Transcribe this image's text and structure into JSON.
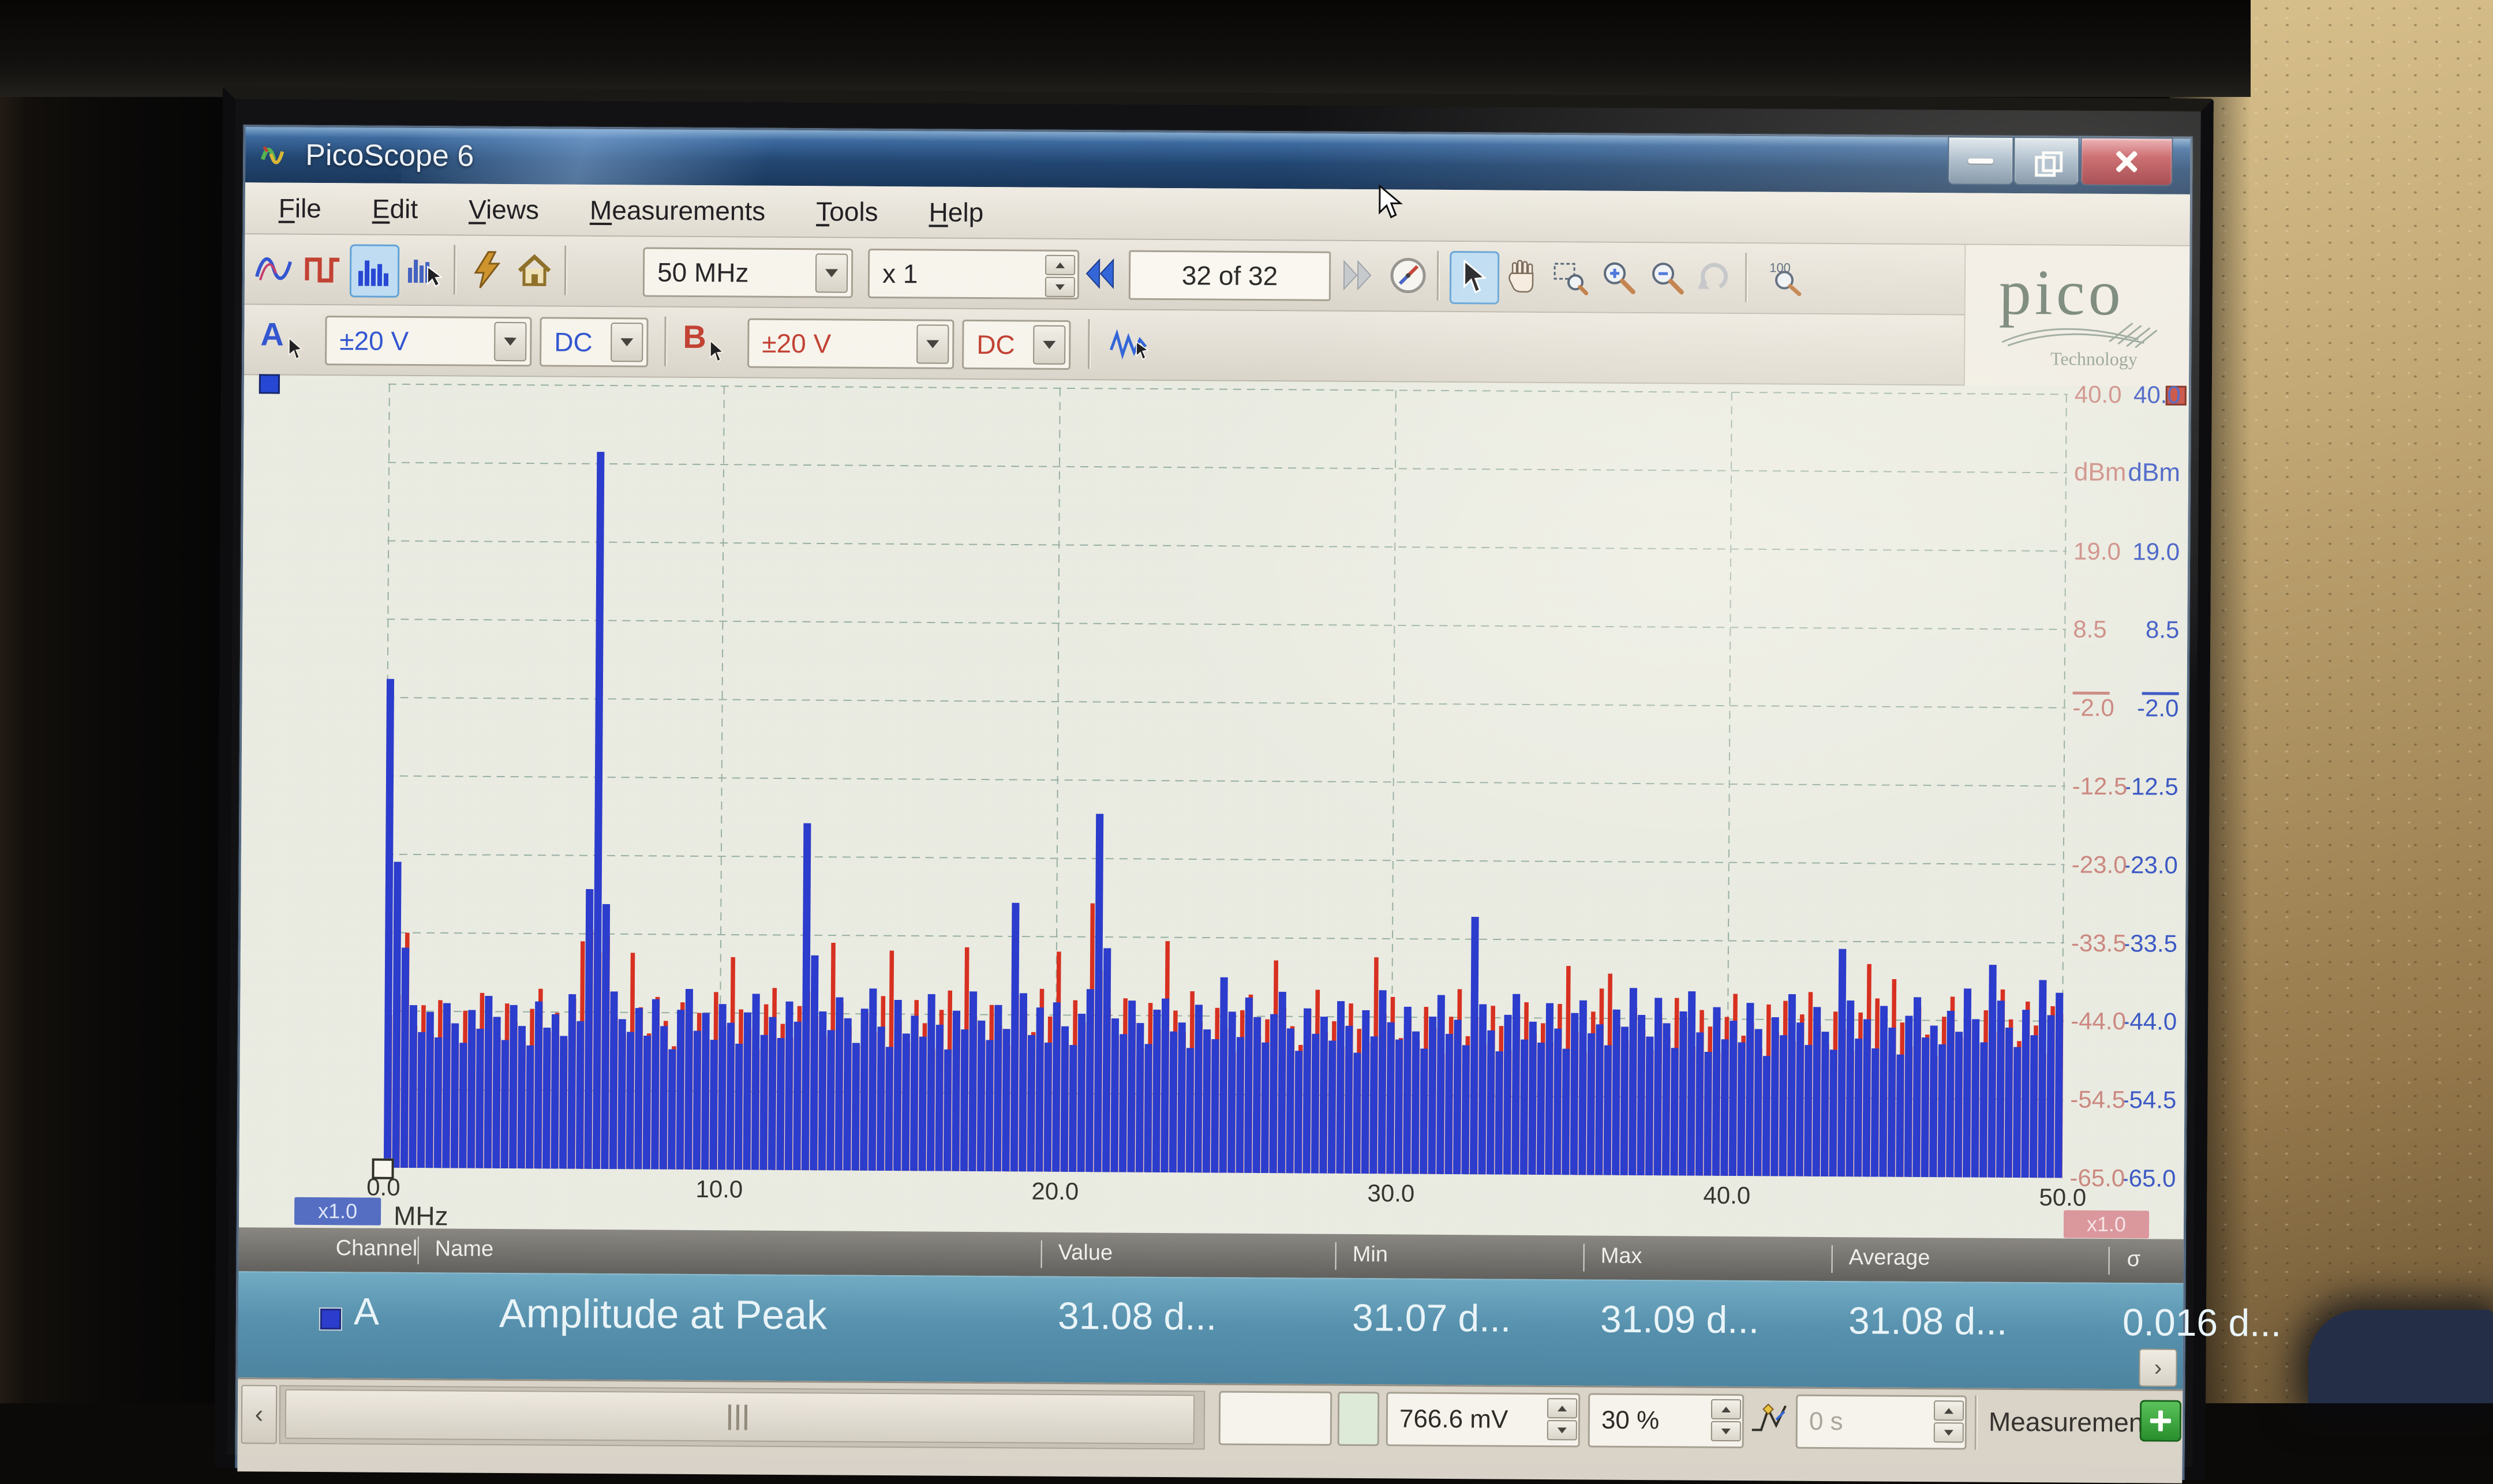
{
  "window": {
    "title": "PicoScope 6"
  },
  "menu": {
    "items": [
      "File",
      "Edit",
      "Views",
      "Measurements",
      "Tools",
      "Help"
    ]
  },
  "toolbar": {
    "timebase": "50 MHz",
    "zoom_factor": "x 1",
    "buffer_position": "32 of 32",
    "icons": [
      "scope-view-icon",
      "square-wave-icon",
      "spectrum-view-icon",
      "persistence-view-icon",
      "signal-generator-icon",
      "home-icon",
      "prev-buffer-icon",
      "next-buffer-icon",
      "compass-icon",
      "select-tool-icon",
      "hand-tool-icon",
      "marquee-zoom-icon",
      "zoom-in-icon",
      "zoom-out-icon",
      "undo-zoom-icon",
      "zoom-100-icon"
    ]
  },
  "channels": {
    "a": {
      "label": "A",
      "range": "±20 V",
      "coupling": "DC",
      "color": "#2133cc"
    },
    "b": {
      "label": "B",
      "range": "±20 V",
      "coupling": "DC",
      "color": "#c0392b"
    }
  },
  "logo": {
    "brand": "pico",
    "sub": "Technology"
  },
  "chart": {
    "y_unit": "dBm",
    "y_tick_labels": [
      "40.0",
      "19.0",
      "8.5",
      "-2.0",
      "-12.5",
      "-23.0",
      "-33.5",
      "-44.0",
      "-54.5",
      "-65.0"
    ],
    "y_tick_values": [
      40,
      19,
      8.5,
      -2,
      -12.5,
      -23,
      -33.5,
      -44,
      -54.5,
      -65
    ],
    "grid_y": [
      40,
      29.5,
      19,
      8.5,
      -2,
      -12.5,
      -23,
      -33.5,
      -44,
      -54.5,
      -65
    ],
    "x_unit": "MHz",
    "x_ticks": [
      "0.0",
      "10.0",
      "20.0",
      "30.0",
      "40.0",
      "50.0"
    ],
    "x_tick_values": [
      0,
      10,
      20,
      30,
      40,
      50
    ],
    "left_badge": "x1.0",
    "right_badge": "x1.0"
  },
  "chart_data": {
    "type": "bar",
    "xlabel": "MHz",
    "ylabel": "dBm",
    "xlim": [
      0,
      50
    ],
    "ylim": [
      -65,
      40
    ],
    "f_start": 0,
    "f_step": 0.25,
    "legend": "none",
    "grid": true,
    "series": [
      {
        "name": "Channel A",
        "color": "#2133cc",
        "values": [
          0.5,
          -24.0,
          -35.5,
          -43.2,
          -46.8,
          -44.1,
          -47.5,
          -42.9,
          -45.6,
          -48.2,
          -43.8,
          -46.3,
          -41.9,
          -44.7,
          -47.8,
          -43.1,
          -45.9,
          -48.5,
          -42.6,
          -46.1,
          -44.3,
          -47.2,
          -41.6,
          -45.2,
          -27.5,
          31.1,
          -29.5,
          -41.2,
          -44.9,
          -46.6,
          -43.4,
          -47.1,
          -42.2,
          -45.8,
          -48.9,
          -43.6,
          -40.8,
          -46.4,
          -44.0,
          -47.6,
          -42.8,
          -45.3,
          -48.1,
          -43.9,
          -41.4,
          -46.9,
          -44.5,
          -47.3,
          -42.4,
          -45.1,
          -18.5,
          -36.2,
          -43.7,
          -46.2,
          -41.8,
          -44.6,
          -47.9,
          -43.3,
          -40.6,
          -45.7,
          -48.4,
          -42.1,
          -46.6,
          -44.2,
          -47.0,
          -41.3,
          -45.4,
          -48.7,
          -43.5,
          -46.0,
          -40.9,
          -44.8,
          -47.4,
          -42.7,
          -45.9,
          -29.0,
          -41.1,
          -46.7,
          -43.0,
          -47.7,
          -42.3,
          -45.5,
          -48.0,
          -43.8,
          -40.5,
          -17.0,
          -35.0,
          -44.4,
          -46.5,
          -42.0,
          -45.0,
          -47.8,
          -43.2,
          -41.7,
          -46.1,
          -44.9,
          -48.3,
          -42.5,
          -45.8,
          -47.1,
          -38.8,
          -43.4,
          -46.8,
          -41.5,
          -44.1,
          -47.5,
          -43.7,
          -40.7,
          -45.6,
          -48.6,
          -42.9,
          -46.3,
          -44.0,
          -47.2,
          -41.9,
          -45.2,
          -48.8,
          -43.1,
          -46.6,
          -40.4,
          -44.7,
          -47.0,
          -42.6,
          -45.9,
          -48.2,
          -43.9,
          -41.0,
          -46.2,
          -44.3,
          -47.7,
          -30.5,
          -42.2,
          -45.7,
          -48.5,
          -43.6,
          -40.8,
          -46.9,
          -44.5,
          -47.3,
          -42.0,
          -45.4,
          -48.1,
          -43.3,
          -41.6,
          -46.0,
          -44.8,
          -47.6,
          -42.8,
          -45.1,
          -39.9,
          -43.5,
          -46.4,
          -41.2,
          -44.6,
          -47.9,
          -43.0,
          -40.3,
          -45.8,
          -48.4,
          -42.4,
          -46.7,
          -44.2,
          -47.1,
          -41.8,
          -45.3,
          -48.9,
          -43.7,
          -46.1,
          -40.6,
          -44.4,
          -47.4,
          -42.3,
          -45.6,
          -48.0,
          -34.5,
          -41.4,
          -46.5,
          -43.9,
          -47.8,
          -42.1,
          -45.0,
          -48.6,
          -43.4,
          -40.9,
          -46.3,
          -44.7,
          -47.2,
          -42.7,
          -45.5,
          -39.7,
          -43.8,
          -46.9,
          -36.5,
          -41.3,
          -44.9,
          -47.5,
          -42.5,
          -45.9,
          -38.5,
          -43.2,
          -40.2
        ]
      },
      {
        "name": "Channel B",
        "color": "#d62718",
        "values": [
          -44.5,
          -41.8,
          -33.5,
          -45.9,
          -43.2,
          -47.1,
          -42.5,
          -45.6,
          -48.3,
          -43.9,
          -46.2,
          -41.5,
          -44.8,
          -47.4,
          -42.9,
          -45.3,
          -48.0,
          -43.6,
          -40.9,
          -46.6,
          -44.1,
          -47.8,
          -42.2,
          -34.5,
          -33.0,
          -36.0,
          -33.8,
          -44.6,
          -47.0,
          -36.0,
          -43.3,
          -46.8,
          -41.9,
          -45.1,
          -48.5,
          -42.6,
          -46.4,
          -44.0,
          -47.6,
          -41.2,
          -45.7,
          -36.5,
          -43.5,
          -46.1,
          -48.8,
          -42.8,
          -40.6,
          -45.4,
          -47.2,
          -43.0,
          -41.0,
          -44.4,
          -46.9,
          -34.5,
          -42.4,
          -45.8,
          -48.2,
          -43.8,
          -46.5,
          -41.6,
          -35.5,
          -44.9,
          -47.7,
          -42.1,
          -45.2,
          -48.6,
          -43.4,
          -40.8,
          -46.0,
          -35.0,
          -44.3,
          -47.5,
          -42.7,
          -45.5,
          -48.1,
          -41.4,
          -43.7,
          -46.3,
          -40.5,
          -44.2,
          -35.5,
          -47.9,
          -42.0,
          -45.0,
          -29.0,
          -38.0,
          -43.1,
          -46.7,
          -41.7,
          -44.5,
          -48.4,
          -42.3,
          -45.9,
          -34.0,
          -43.3,
          -46.2,
          -40.7,
          -44.8,
          -47.3,
          -42.9,
          -45.7,
          -48.7,
          -43.2,
          -41.1,
          -46.6,
          -44.4,
          -36.5,
          -42.8,
          -45.3,
          -47.8,
          -43.0,
          -40.4,
          -46.1,
          -44.6,
          -48.0,
          -42.2,
          -45.6,
          -47.4,
          -36.0,
          -43.5,
          -41.3,
          -46.8,
          -44.1,
          -47.1,
          -42.6,
          -45.4,
          -48.9,
          -43.9,
          -40.2,
          -46.5,
          -44.0,
          -47.6,
          -42.4,
          -45.1,
          -48.3,
          -43.6,
          -41.9,
          -46.0,
          -44.7,
          -47.2,
          -42.1,
          -37.0,
          -45.8,
          -48.6,
          -43.1,
          -40.0,
          -38.0,
          -44.9,
          -47.0,
          -42.5,
          -45.5,
          -48.2,
          -43.4,
          -46.4,
          -41.2,
          -44.2,
          -47.7,
          -42.8,
          -45.0,
          -48.5,
          -43.7,
          -40.6,
          -46.2,
          -44.5,
          -47.9,
          -42.0,
          -45.7,
          -41.5,
          -46.9,
          -43.3,
          -40.3,
          -44.8,
          -47.3,
          -42.9,
          -45.2,
          -48.1,
          -43.0,
          -36.5,
          -41.1,
          -46.6,
          -38.5,
          -44.3,
          -47.5,
          -42.2,
          -45.9,
          -48.8,
          -43.5,
          -40.8,
          -46.3,
          -44.0,
          -47.1,
          -42.6,
          -45.4,
          -39.8,
          -43.8,
          -46.7,
          -41.4,
          -44.6,
          -48.4,
          -42.0,
          -43.0
        ]
      }
    ]
  },
  "measurements": {
    "headers": [
      "Channel",
      "Name",
      "Value",
      "Min",
      "Max",
      "Average",
      "σ"
    ],
    "rows": [
      {
        "channel": "A",
        "name": "Amplitude at Peak",
        "value": "31.08 d...",
        "min": "31.07 d...",
        "max": "31.09 d...",
        "average": "31.08 d...",
        "sigma": "0.016 d..."
      }
    ],
    "scroll_right": "›"
  },
  "bottom": {
    "scroll_left": "‹",
    "voltage": "766.6 mV",
    "percent": "30 %",
    "time": "0 s",
    "measurements_label": "Measurements",
    "add_label": "+"
  }
}
